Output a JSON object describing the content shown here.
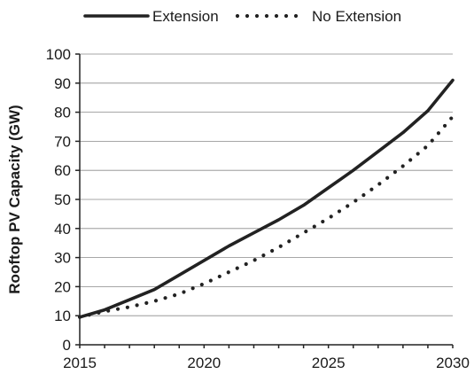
{
  "chart_data": {
    "type": "line",
    "title": "",
    "xlabel": "",
    "ylabel": "Rooftop PV Capacity (GW)",
    "xlim": [
      2015,
      2030
    ],
    "ylim": [
      0,
      100
    ],
    "x_ticks": [
      2015,
      2020,
      2025,
      2030
    ],
    "y_ticks": [
      0,
      10,
      20,
      30,
      40,
      50,
      60,
      70,
      80,
      90,
      100
    ],
    "grid": true,
    "legend_position": "top",
    "series": [
      {
        "name": "Extension",
        "style": "solid",
        "color": "#222222",
        "x": [
          2015,
          2016,
          2017,
          2018,
          2019,
          2020,
          2021,
          2022,
          2023,
          2024,
          2025,
          2026,
          2027,
          2028,
          2029,
          2030
        ],
        "values": [
          9.5,
          12,
          15.5,
          19,
          24,
          29,
          34,
          38.5,
          43,
          48,
          54,
          60,
          66.5,
          73,
          80.5,
          91
        ]
      },
      {
        "name": "No Extension",
        "style": "dotted",
        "color": "#222222",
        "x": [
          2015,
          2016,
          2017,
          2018,
          2019,
          2020,
          2021,
          2022,
          2023,
          2024,
          2025,
          2026,
          2027,
          2028,
          2029,
          2030
        ],
        "values": [
          9.5,
          11.5,
          13,
          15,
          17.5,
          21,
          25,
          29,
          33.5,
          38.5,
          43.5,
          49,
          55,
          61.5,
          68.5,
          78.5
        ]
      }
    ]
  }
}
